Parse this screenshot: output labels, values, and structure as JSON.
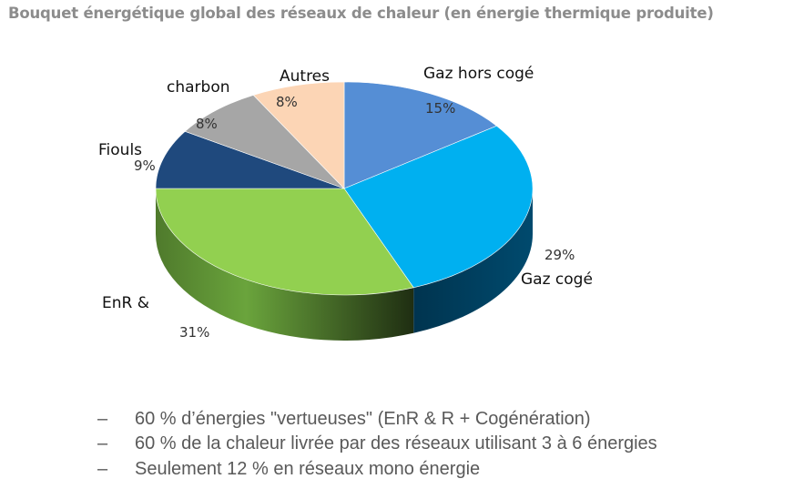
{
  "chart_data": {
    "type": "pie",
    "title": "Bouquet énergétique global des réseaux de chaleur (en énergie thermique produite)",
    "slices": [
      {
        "name": "Gaz hors cogé",
        "value": 15,
        "value_label": "15%",
        "color": "#558ed5"
      },
      {
        "name": "Gaz  cogé",
        "value": 29,
        "value_label": "29%",
        "color": "#00b0f0"
      },
      {
        "name": "EnR &",
        "value": 31,
        "value_label": "31%",
        "color": "#92d050"
      },
      {
        "name": "Fiouls",
        "value": 9,
        "value_label": "9%",
        "color": "#1f497d"
      },
      {
        "name": "charbon",
        "value": 8,
        "value_label": "8%",
        "color": "#a6a6a6"
      },
      {
        "name": "Autres",
        "value": 8,
        "value_label": "8%",
        "color": "#fcd5b5"
      }
    ]
  },
  "notes": [
    {
      "dash": "–",
      "text": "60 % d’énergies \"vertueuses\" (EnR & R + Cogénération)"
    },
    {
      "dash": "–",
      "text": "60 % de la chaleur livrée par des réseaux utilisant 3 à 6 énergies"
    },
    {
      "dash": "–",
      "text": "Seulement 12 % en réseaux mono énergie"
    }
  ]
}
